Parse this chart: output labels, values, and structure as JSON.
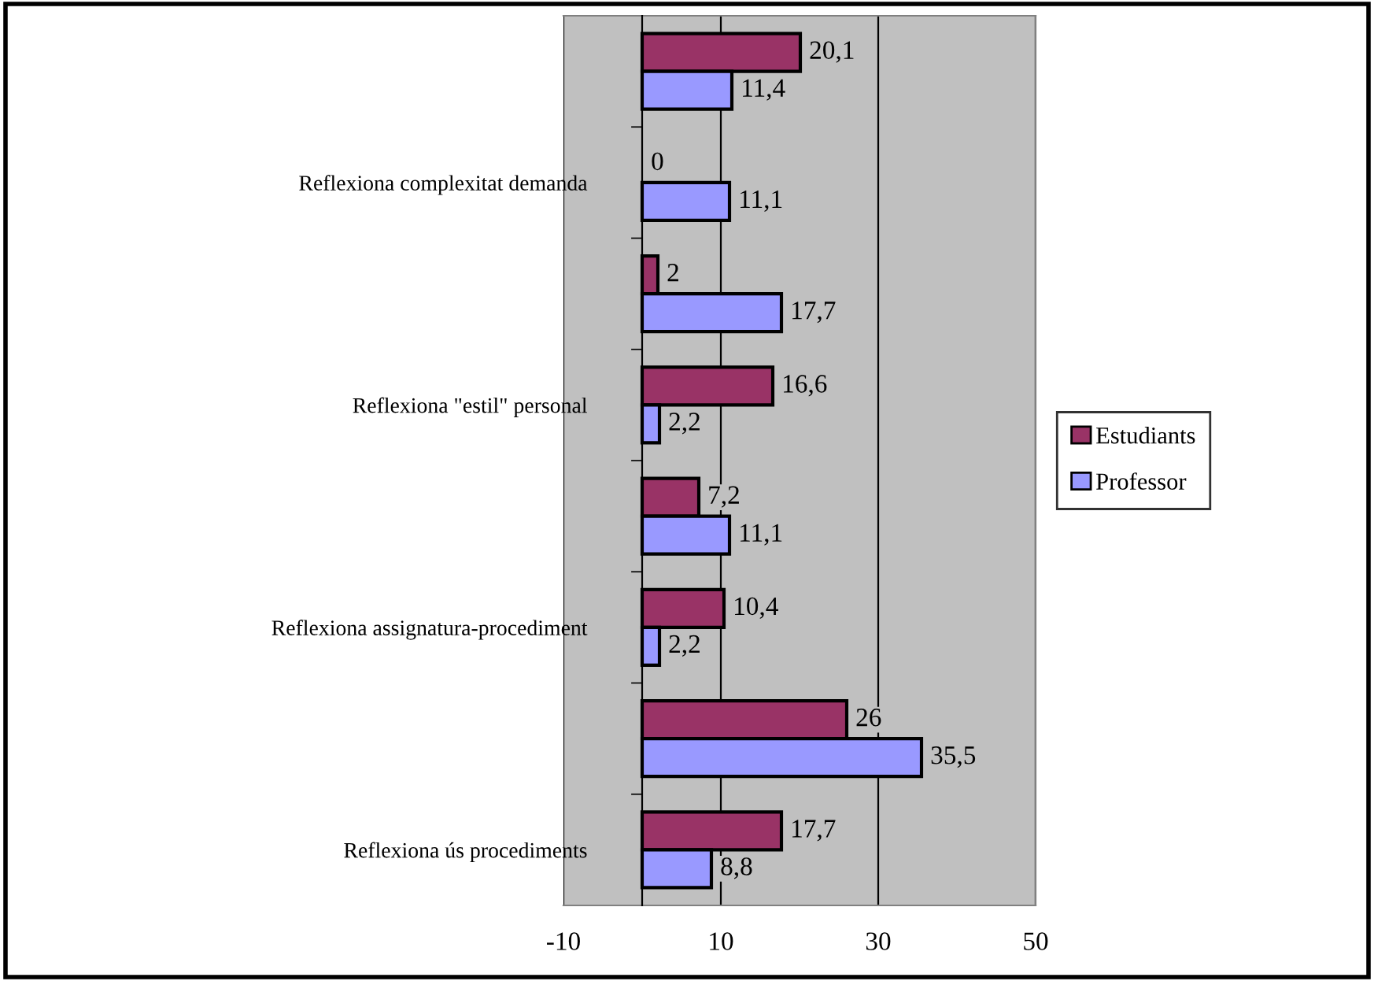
{
  "chart_data": {
    "type": "bar",
    "orientation": "horizontal",
    "categories": [
      null,
      "Reflexiona complexitat demanda",
      null,
      "Reflexiona \"estil\" personal",
      null,
      "Reflexiona assignatura-procediment",
      null,
      "Reflexiona ús procediments"
    ],
    "series": [
      {
        "name": "Estudiants",
        "color": "#993366",
        "values": [
          20.1,
          0,
          2,
          16.6,
          7.2,
          10.4,
          26,
          17.7
        ],
        "value_labels": [
          "20,1",
          "0",
          "2",
          "16,6",
          "7,2",
          "10,4",
          "26",
          "17,7"
        ]
      },
      {
        "name": "Professor",
        "color": "#9999ff",
        "values": [
          11.4,
          11.1,
          17.7,
          2.2,
          11.1,
          2.2,
          35.5,
          8.8
        ],
        "value_labels": [
          "11,4",
          "11,1",
          "17,7",
          "2,2",
          "11,1",
          "2,2",
          "35,5",
          "8,8"
        ]
      }
    ],
    "xlim": [
      -10,
      50
    ],
    "xticks": [
      -10,
      10,
      30,
      50
    ],
    "grid": "x",
    "legend": "right"
  }
}
